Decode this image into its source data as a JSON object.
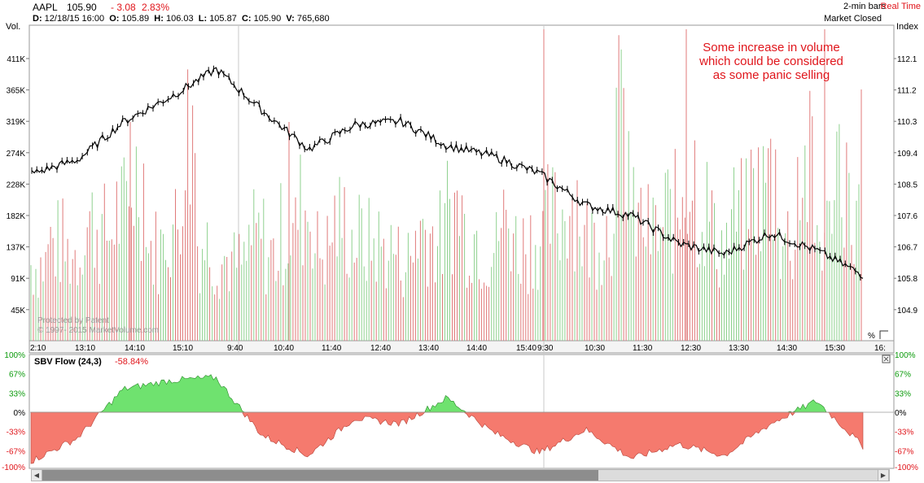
{
  "header": {
    "symbol": "AAPL",
    "last": "105.90",
    "change": "- 3.08",
    "change_pct": "2.83%",
    "bar_interval": "2-min bars",
    "realtime": "Real Time",
    "market_status": "Market Closed",
    "ohlc_line": {
      "d_label": "D:",
      "d_value": "12/18/15 16:00",
      "o_label": "O:",
      "o_value": "105.89",
      "h_label": "H:",
      "h_value": "106.03",
      "l_label": "L:",
      "l_value": "105.87",
      "c_label": "C:",
      "c_value": "105.90",
      "v_label": "V:",
      "v_value": "765,680"
    }
  },
  "axes": {
    "left_title": "Vol.",
    "right_title": "Index",
    "vol_ticks": [
      "411K",
      "365K",
      "319K",
      "274K",
      "228K",
      "182K",
      "137K",
      "91K",
      "45K"
    ],
    "price_ticks": [
      "112.1",
      "111.2",
      "110.3",
      "109.4",
      "108.5",
      "107.6",
      "106.7",
      "105.8",
      "104.9"
    ],
    "time_ticks": [
      "2:10",
      "13:10",
      "14:10",
      "15:10",
      "9:40",
      "10:40",
      "11:40",
      "12:40",
      "13:40",
      "14:40",
      "15:40",
      "9:30",
      "10:30",
      "11:30",
      "12:30",
      "13:30",
      "14:30",
      "15:30",
      "16:"
    ],
    "percent_label": "%"
  },
  "annotation": "Some increase in volume\nwhich could be considered\nas some panic selling",
  "watermark": {
    "line1": "Protected by Patent",
    "line2": "© 1997- 2015 MarketVolume.com"
  },
  "indicator": {
    "name": "SBV Flow",
    "params": "(24,3)",
    "value": "-58.84%",
    "ticks_left": [
      "100%",
      "67%",
      "33%",
      "0%",
      "-33%",
      "-67%",
      "-100%"
    ],
    "ticks_right": [
      "100%",
      "67%",
      "33%",
      "0%",
      "-33%",
      "-67%",
      "-100%"
    ]
  },
  "colors": {
    "up_volume": "#8fd18f",
    "down_volume": "#e07a7a",
    "positive_fill": "#6fe26f",
    "negative_fill": "#f57a6e",
    "price_line": "#000000",
    "accent_red": "#e0151b",
    "accent_green": "#0a9a0a"
  },
  "chart_data": [
    {
      "type": "line",
      "title": "AAPL",
      "ylabel": "Index",
      "ylim": [
        104.9,
        112.1
      ],
      "series": [
        {
          "name": "AAPL",
          "x": [
            "2:10",
            "13:10",
            "14:10",
            "15:10",
            "9:40",
            "10:40",
            "11:40",
            "12:40",
            "13:40",
            "14:40",
            "15:40",
            "9:30",
            "10:30",
            "11:30",
            "12:30",
            "13:30",
            "14:30",
            "15:30",
            "16:"
          ],
          "values": [
            108.8,
            109.2,
            110.3,
            111.0,
            111.8,
            110.6,
            109.5,
            110.2,
            110.3,
            109.6,
            109.3,
            108.8,
            107.9,
            107.6,
            106.8,
            106.5,
            107.1,
            106.6,
            105.9
          ]
        }
      ]
    },
    {
      "type": "bar",
      "title": "",
      "ylabel": "Vol.",
      "ylim": [
        0,
        430
      ],
      "unit": "K",
      "series": [
        {
          "name": "",
          "values": [
            150,
            190,
            170,
            230,
            210,
            250,
            320,
            180,
            220,
            410,
            190,
            160,
            150,
            200,
            170,
            210,
            260,
            180,
            230,
            200,
            190,
            180,
            160,
            220,
            200,
            260,
            210,
            180,
            230,
            190,
            200,
            240,
            280,
            200,
            220,
            410,
            230,
            210,
            250,
            330,
            260,
            190,
            240,
            290,
            320,
            200,
            330,
            210,
            360,
            240
          ]
        }
      ]
    },
    {
      "type": "area",
      "title": "SBV Flow",
      "ylabel": "",
      "ylim": [
        -100,
        100
      ],
      "series": [
        {
          "name": "SBV Flow",
          "x": [
            "2:10",
            "13:10",
            "14:10",
            "15:10",
            "9:40",
            "10:40",
            "11:40",
            "12:40",
            "13:40",
            "14:40",
            "15:40",
            "9:30",
            "10:30",
            "11:30",
            "12:30",
            "13:30",
            "14:30",
            "15:30",
            "16:"
          ],
          "values": [
            -85,
            -45,
            40,
            55,
            60,
            -40,
            -75,
            -10,
            -20,
            25,
            -35,
            -70,
            -30,
            -80,
            -55,
            -75,
            -20,
            20,
            -58.84
          ]
        }
      ]
    }
  ]
}
